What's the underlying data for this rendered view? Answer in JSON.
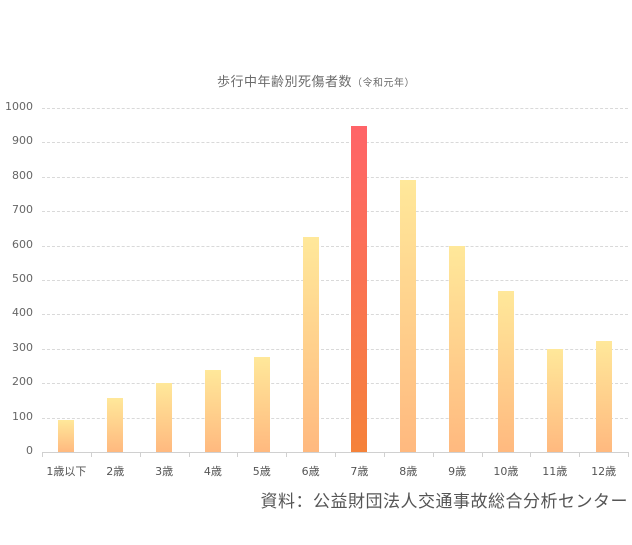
{
  "chart_data": {
    "type": "bar",
    "title": "歩行中年齢別死傷者数",
    "subtitle": "（令和元年）",
    "xlabel": "",
    "ylabel": "",
    "categories": [
      "1歳以下",
      "2歳",
      "3歳",
      "4歳",
      "5歳",
      "6歳",
      "7歳",
      "8歳",
      "9歳",
      "10歳",
      "11歳",
      "12歳"
    ],
    "values": [
      94,
      157,
      200,
      238,
      276,
      626,
      949,
      791,
      600,
      468,
      300,
      323
    ],
    "highlight_index": 6,
    "ylim": [
      0,
      1000
    ],
    "yticks": [
      0,
      100,
      200,
      300,
      400,
      500,
      600,
      700,
      800,
      900,
      1000
    ],
    "grid": true,
    "legend": null,
    "colors": {
      "bar_top": "#FFE89A",
      "bar_bottom": "#FFB97F",
      "highlight_top": "#FF6468",
      "highlight_bottom": "#F5823A",
      "grid": "#d9d9d9"
    }
  },
  "source": "資料：公益財団法人交通事故総合分析センター"
}
